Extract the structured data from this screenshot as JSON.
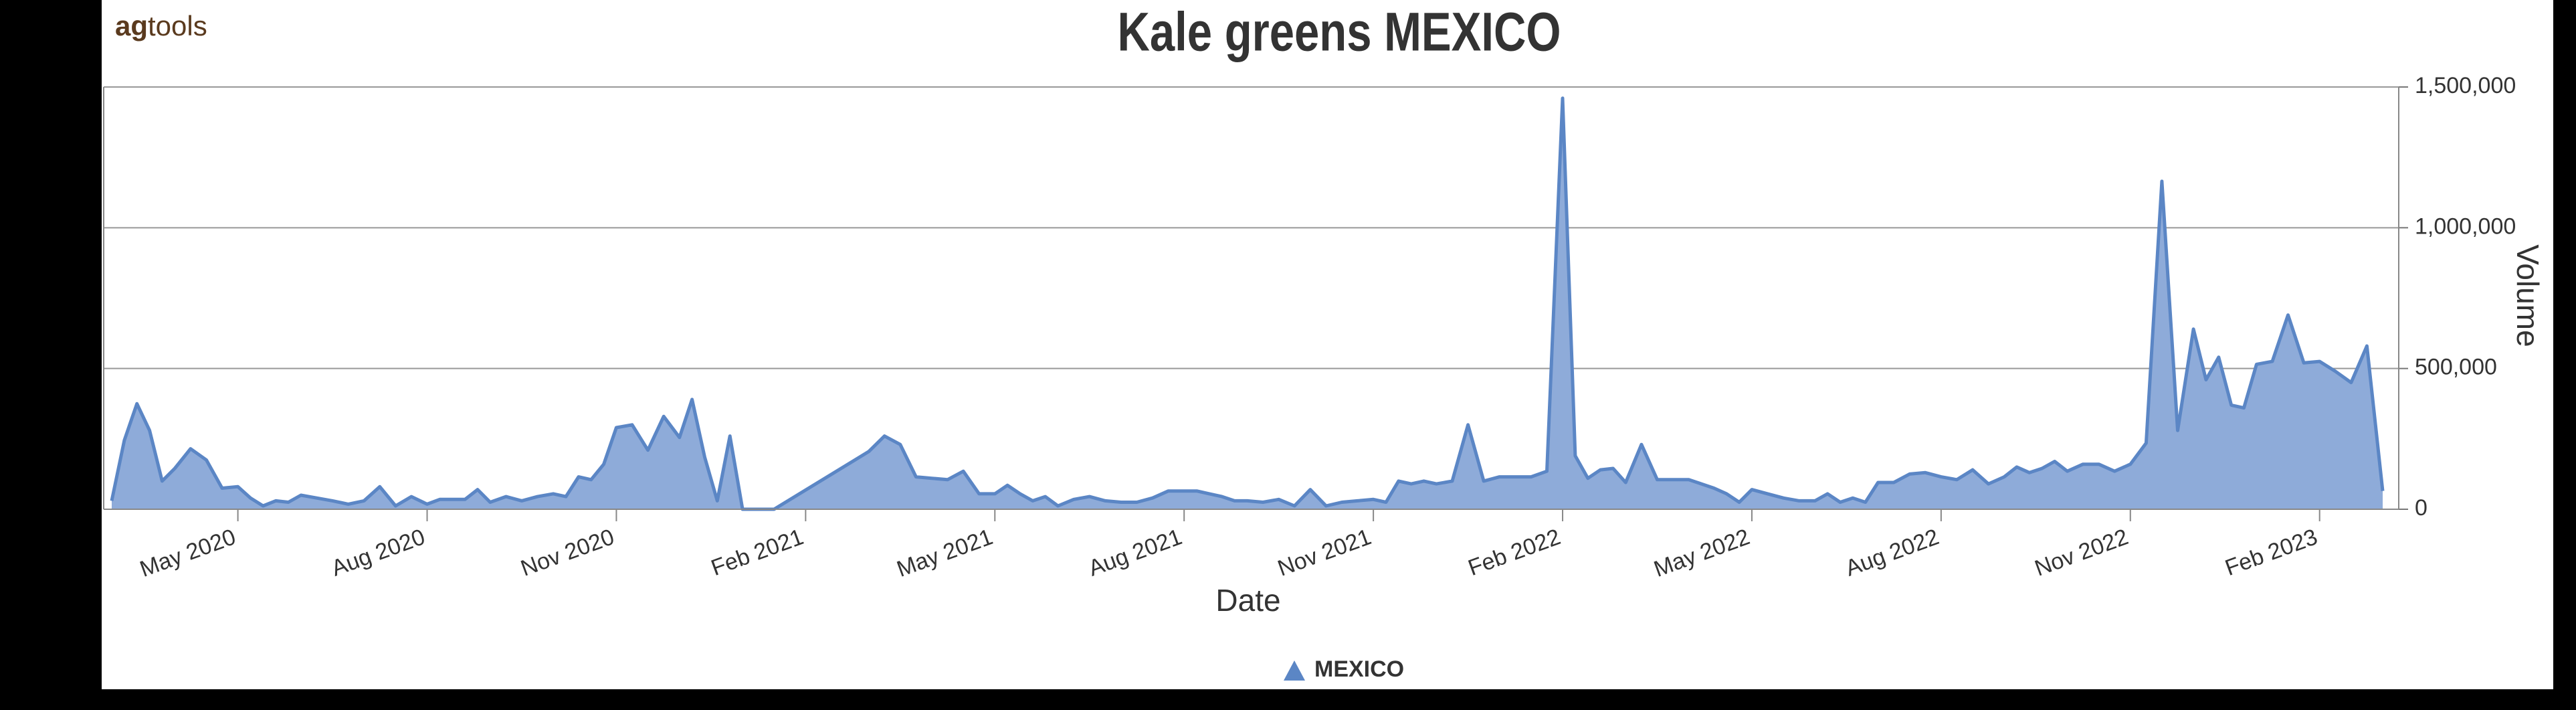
{
  "logo": [
    "ag",
    "tools"
  ],
  "chart_data": {
    "type": "area",
    "title": "Kale greens MEXICO",
    "x_label": "Date",
    "y_label": "Volume",
    "x": [
      "2020-03",
      "2020-03",
      "2020-03",
      "2020-03",
      "2020-03",
      "2020-04",
      "2020-04",
      "2020-04",
      "2020-04",
      "2020-05",
      "2020-05",
      "2020-05",
      "2020-05",
      "2020-05",
      "2020-06",
      "2020-06",
      "2020-06",
      "2020-06",
      "2020-07",
      "2020-07",
      "2020-07",
      "2020-07",
      "2020-08",
      "2020-08",
      "2020-08",
      "2020-08",
      "2020-08",
      "2020-09",
      "2020-09",
      "2020-09",
      "2020-09",
      "2020-10",
      "2020-10",
      "2020-10",
      "2020-10",
      "2020-10",
      "2020-11",
      "2020-11",
      "2020-11",
      "2020-11",
      "2020-12",
      "2020-12",
      "2020-12",
      "2020-12",
      "2020-12",
      "2021-01",
      "2021-01",
      "2021-03",
      "2021-03",
      "2021-03",
      "2021-03",
      "2021-04",
      "2021-04",
      "2021-04",
      "2021-04",
      "2021-05",
      "2021-05",
      "2021-05",
      "2021-05",
      "2021-05",
      "2021-06",
      "2021-06",
      "2021-06",
      "2021-06",
      "2021-07",
      "2021-07",
      "2021-07",
      "2021-07",
      "2021-08",
      "2021-08",
      "2021-08",
      "2021-08",
      "2021-08",
      "2021-09",
      "2021-09",
      "2021-09",
      "2021-09",
      "2021-10",
      "2021-10",
      "2021-10",
      "2021-10",
      "2021-11",
      "2021-11",
      "2021-11",
      "2021-11",
      "2021-11",
      "2021-12",
      "2021-12",
      "2021-12",
      "2021-12",
      "2022-01",
      "2022-01",
      "2022-01",
      "2022-01",
      "2022-02",
      "2022-02",
      "2022-02",
      "2022-02",
      "2022-02",
      "2022-03",
      "2022-03",
      "2022-03",
      "2022-03",
      "2022-04",
      "2022-04",
      "2022-04",
      "2022-04",
      "2022-04",
      "2022-05",
      "2022-05",
      "2022-05",
      "2022-05",
      "2022-06",
      "2022-06",
      "2022-06",
      "2022-06",
      "2022-06",
      "2022-07",
      "2022-07",
      "2022-07",
      "2022-07",
      "2022-08",
      "2022-08",
      "2022-08",
      "2022-08",
      "2022-09",
      "2022-09",
      "2022-09",
      "2022-09",
      "2022-09",
      "2022-10",
      "2022-10",
      "2022-10",
      "2022-10",
      "2022-11",
      "2022-11",
      "2022-11",
      "2022-11",
      "2022-12",
      "2022-12",
      "2022-12",
      "2022-12",
      "2022-12",
      "2023-01",
      "2023-01",
      "2023-01",
      "2023-01",
      "2023-02",
      "2023-02",
      "2023-02",
      "2023-02",
      "2023-03"
    ],
    "series": [
      {
        "name": "MEXICO",
        "color": "#5b86c5",
        "fill": "#8eabd9",
        "values": [
          30000,
          245000,
          375000,
          280000,
          100000,
          145000,
          215000,
          175000,
          75000,
          80000,
          40000,
          12000,
          30000,
          25000,
          50000,
          40000,
          30000,
          18000,
          30000,
          80000,
          12000,
          45000,
          18000,
          35000,
          35000,
          35000,
          70000,
          25000,
          45000,
          30000,
          45000,
          55000,
          45000,
          115000,
          105000,
          160000,
          290000,
          300000,
          210000,
          330000,
          255000,
          390000,
          185000,
          30000,
          260000,
          0,
          0,
          205000,
          260000,
          230000,
          115000,
          110000,
          105000,
          135000,
          55000,
          55000,
          85000,
          55000,
          30000,
          45000,
          12000,
          35000,
          45000,
          30000,
          25000,
          25000,
          40000,
          65000,
          65000,
          65000,
          55000,
          45000,
          30000,
          30000,
          25000,
          35000,
          12000,
          70000,
          12000,
          25000,
          30000,
          35000,
          25000,
          100000,
          90000,
          100000,
          90000,
          100000,
          300000,
          100000,
          115000,
          115000,
          115000,
          135000,
          1460000,
          190000,
          110000,
          140000,
          145000,
          95000,
          230000,
          105000,
          105000,
          105000,
          90000,
          75000,
          55000,
          25000,
          70000,
          55000,
          40000,
          30000,
          30000,
          55000,
          25000,
          40000,
          25000,
          95000,
          95000,
          125000,
          130000,
          115000,
          105000,
          140000,
          90000,
          115000,
          150000,
          130000,
          145000,
          170000,
          135000,
          160000,
          160000,
          135000,
          160000,
          235000,
          1165000,
          280000,
          640000,
          460000,
          540000,
          370000,
          360000,
          515000,
          525000,
          690000,
          520000,
          525000,
          490000,
          450000,
          580000,
          65000
        ]
      }
    ],
    "xlim": [
      "2020-03",
      "2023-03"
    ],
    "xticks": [
      {
        "value": "2020-05",
        "label": "May 2020"
      },
      {
        "value": "2020-08",
        "label": "Aug 2020"
      },
      {
        "value": "2020-11",
        "label": "Nov 2020"
      },
      {
        "value": "2021-02",
        "label": "Feb 2021"
      },
      {
        "value": "2021-05",
        "label": "May 2021"
      },
      {
        "value": "2021-08",
        "label": "Aug 2021"
      },
      {
        "value": "2021-11",
        "label": "Nov 2021"
      },
      {
        "value": "2022-02",
        "label": "Feb 2022"
      },
      {
        "value": "2022-05",
        "label": "May 2022"
      },
      {
        "value": "2022-08",
        "label": "Aug 2022"
      },
      {
        "value": "2022-11",
        "label": "Nov 2022"
      },
      {
        "value": "2023-02",
        "label": "Feb 2023"
      }
    ],
    "ylim": [
      0,
      1500000
    ],
    "yticks": [
      0,
      {
        "value": 500000,
        "label": "500,000"
      },
      {
        "value": 1000000,
        "label": "1,000,000"
      },
      {
        "value": 1500000,
        "label": "1,500,000"
      }
    ],
    "grid": true,
    "legend": "bottom"
  }
}
